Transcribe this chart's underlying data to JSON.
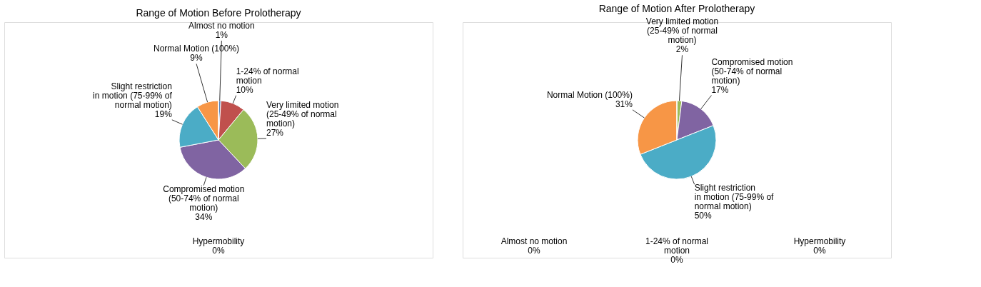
{
  "chart_data": [
    {
      "type": "pie",
      "title": "Range of Motion Before Prolotherapy",
      "categories": [
        "Almost no motion",
        "1-24% of normal motion",
        "Very limited motion (25-49% of normal motion)",
        "Compromised motion (50-74% of normal motion)",
        "Slight restriction in motion (75-99% of normal motion)",
        "Normal Motion (100%)",
        "Hypermobility"
      ],
      "values": [
        1,
        10,
        27,
        34,
        19,
        9,
        0
      ],
      "value_labels": [
        "1%",
        "10%",
        "27%",
        "34%",
        "19%",
        "9%",
        "0%"
      ],
      "colors": [
        "#4f81bd",
        "#c0504d",
        "#9bbb59",
        "#8064a2",
        "#4bacc6",
        "#f79646",
        "#2c4d75"
      ]
    },
    {
      "type": "pie",
      "title": "Range of Motion After Prolotherapy",
      "categories": [
        "Almost no motion",
        "1-24% of normal motion",
        "Very limited motion (25-49% of normal motion)",
        "Compromised motion (50-74% of normal motion)",
        "Slight restriction in motion (75-99% of normal motion)",
        "Normal Motion (100%)",
        "Hypermobility"
      ],
      "values": [
        0,
        0,
        2,
        17,
        50,
        31,
        0
      ],
      "value_labels": [
        "0%",
        "0%",
        "2%",
        "17%",
        "50%",
        "31%",
        "0%"
      ],
      "colors": [
        "#4f81bd",
        "#c0504d",
        "#9bbb59",
        "#8064a2",
        "#4bacc6",
        "#f79646",
        "#2c4d75"
      ]
    }
  ]
}
